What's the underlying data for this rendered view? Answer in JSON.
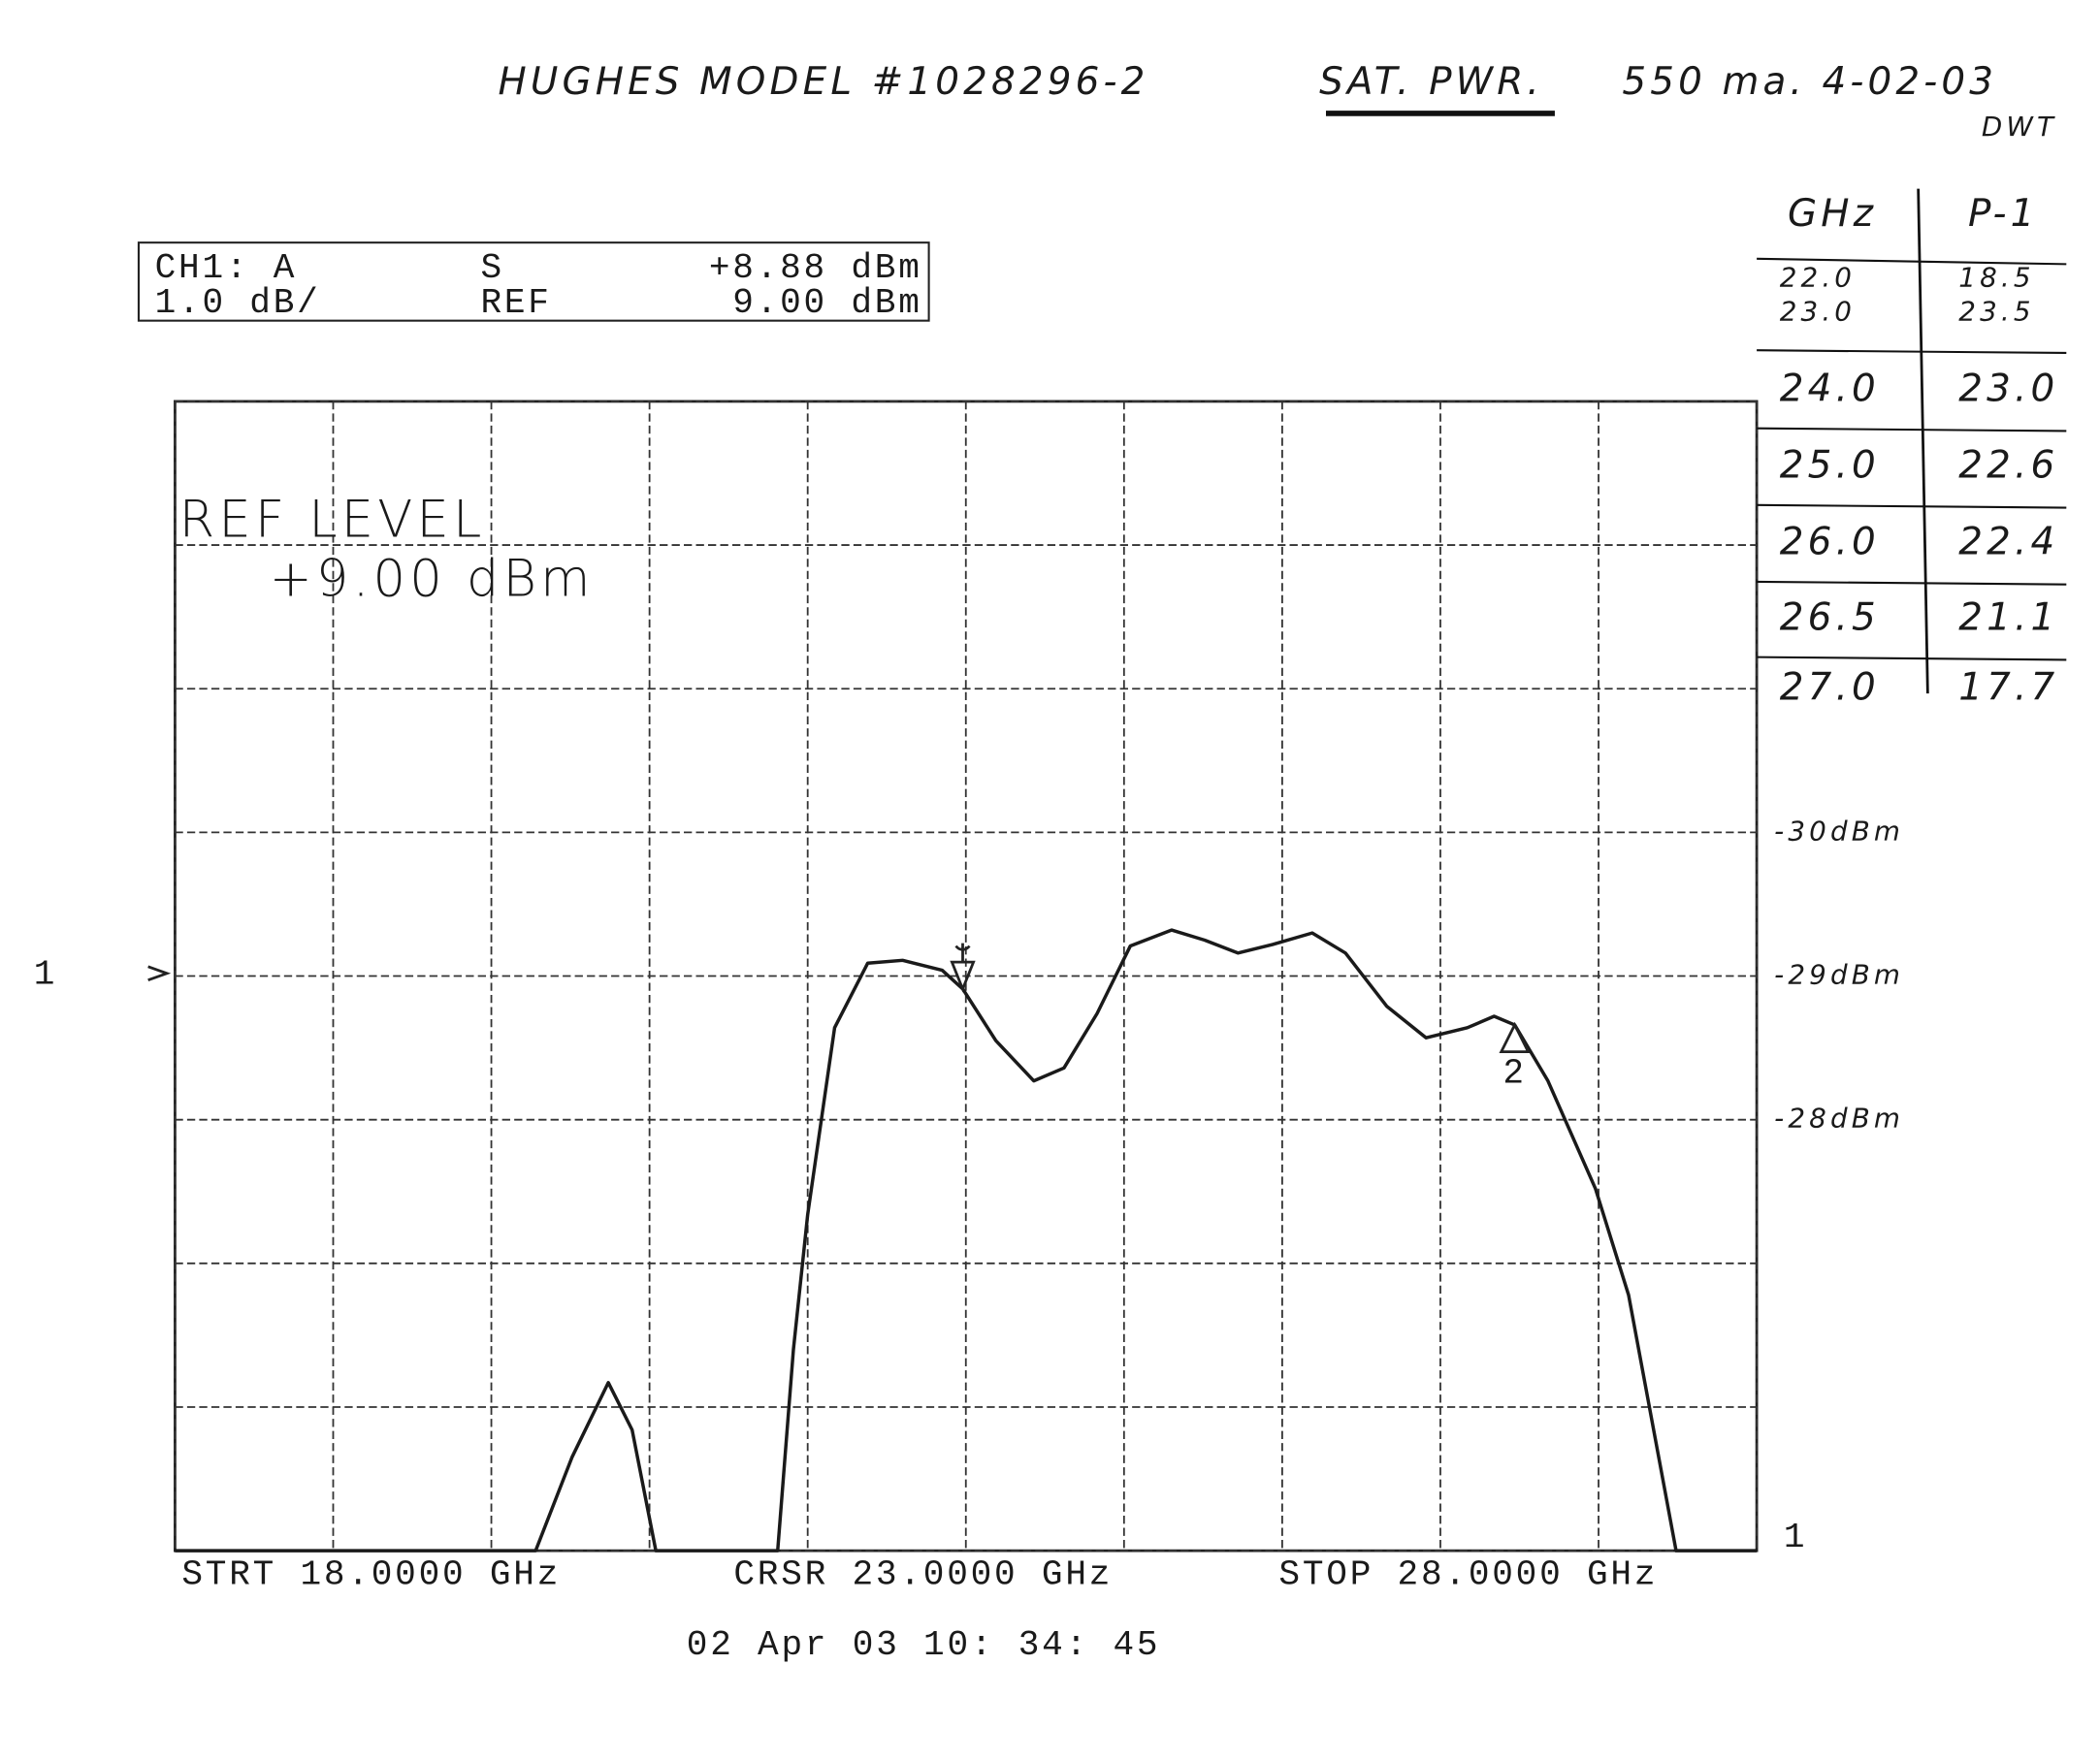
{
  "header": {
    "model": "HUGHES MODEL #1028296-2",
    "sat_pwr": "SAT. PWR.",
    "conditions": "550 ma. 4-02-03",
    "initials": "DWT"
  },
  "table": {
    "header": [
      "GHz",
      "P-1"
    ],
    "rows": [
      [
        "22.0",
        "18.5"
      ],
      [
        "23.0",
        "23.5"
      ],
      [
        "24.0",
        "23.0"
      ],
      [
        "25.0",
        "22.6"
      ],
      [
        "26.0",
        "22.4"
      ],
      [
        "26.5",
        "21.1"
      ],
      [
        "27.0",
        "17.7"
      ]
    ]
  },
  "chart_data": {
    "type": "line",
    "status": {
      "channel": "CH1: A",
      "s_label": "S",
      "s_value": "+8.88 dBm",
      "scale": "1.0 dB/",
      "ref_label": "REF",
      "ref_value": "9.00 dBm"
    },
    "ref_level_label": "REF LEVEL",
    "ref_level_value": "+9.00 dBm",
    "start_label": "STRT 18.0000 GHz",
    "cursor_label": "CRSR 23.0000 GHz",
    "stop_label": "STOP 28.0000 GHz",
    "timestamp": "02 Apr 03   10: 34: 45",
    "channel_labels": [
      "1",
      "1"
    ],
    "annotations": [
      {
        "text": "-30dBm",
        "y": 10
      },
      {
        "text": "-29dBm",
        "y": 9
      },
      {
        "text": "-28dBm",
        "y": 8
      }
    ],
    "xlim": [
      18,
      28
    ],
    "ylim": [
      5,
      13
    ],
    "xticks": [
      18,
      19,
      20,
      21,
      22,
      23,
      24,
      25,
      26,
      27,
      28
    ],
    "yticks": [
      5,
      6,
      7,
      8,
      9,
      10,
      11,
      12,
      13
    ],
    "grid": true,
    "series": [
      {
        "color": "#1a1a1a",
        "x": [
          18.0,
          20.28,
          20.51,
          20.74,
          20.89,
          21.04,
          21.81,
          21.91,
          22.0,
          22.17,
          22.38,
          22.6,
          22.85,
          22.98,
          23.19,
          23.43,
          23.62,
          23.83,
          24.04,
          24.3,
          24.51,
          24.72,
          24.94,
          25.19,
          25.4,
          25.66,
          25.91,
          26.17,
          26.34,
          26.47,
          26.68,
          26.98,
          27.19,
          27.49,
          28.0
        ],
        "values": [
          5.0,
          5.0,
          5.65,
          6.17,
          5.84,
          5.0,
          5.0,
          6.4,
          7.34,
          8.64,
          9.09,
          9.11,
          9.04,
          8.91,
          8.55,
          8.27,
          8.36,
          8.74,
          9.21,
          9.32,
          9.25,
          9.16,
          9.22,
          9.3,
          9.16,
          8.79,
          8.57,
          8.64,
          8.72,
          8.66,
          8.27,
          7.52,
          6.78,
          5.0,
          5.0
        ]
      }
    ],
    "markers": [
      {
        "x": 22.98,
        "y": 8.91
      },
      {
        "label": "2",
        "x": 26.47,
        "y": 8.66
      }
    ]
  }
}
